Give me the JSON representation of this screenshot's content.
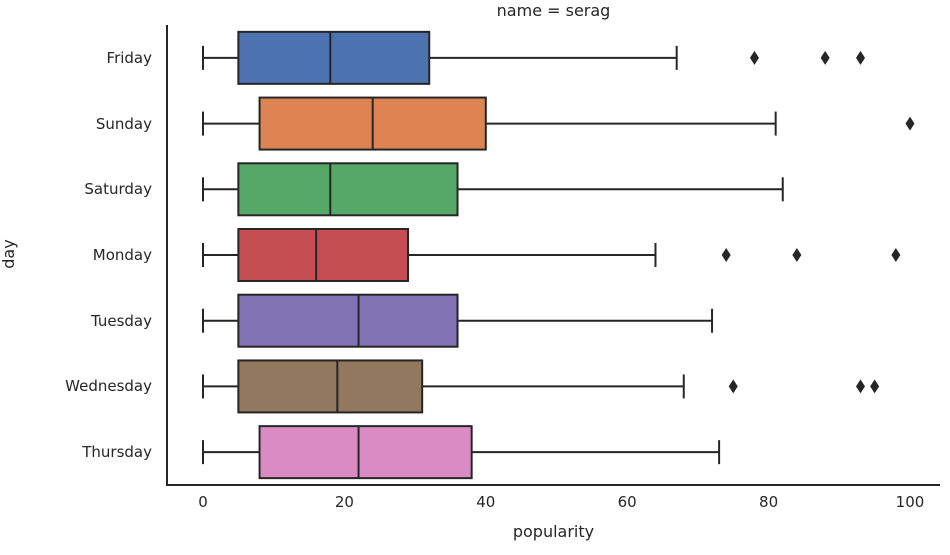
{
  "figure": {
    "title": "name = serag",
    "xlabel": "popularity",
    "ylabel": "day"
  },
  "chart_data": {
    "type": "boxplot",
    "orientation": "horizontal",
    "title": "name = serag",
    "xlabel": "popularity",
    "ylabel": "day",
    "grid": false,
    "legend": "none",
    "xlim": [
      -5,
      105
    ],
    "xticks": [
      "0",
      "20",
      "40",
      "60",
      "80",
      "100"
    ],
    "xtick_values": [
      0,
      20,
      40,
      60,
      80,
      100
    ],
    "categories": [
      "Friday",
      "Sunday",
      "Saturday",
      "Monday",
      "Tuesday",
      "Wednesday",
      "Thursday"
    ],
    "series": [
      {
        "name": "Friday",
        "whisker_low": 0,
        "q1": 5,
        "median": 18,
        "q3": 32,
        "whisker_high": 67,
        "outliers": [
          78,
          88,
          93
        ],
        "color": "#4C72B0"
      },
      {
        "name": "Sunday",
        "whisker_low": 0,
        "q1": 8,
        "median": 24,
        "q3": 40,
        "whisker_high": 81,
        "outliers": [
          100
        ],
        "color": "#DD8452"
      },
      {
        "name": "Saturday",
        "whisker_low": 0,
        "q1": 5,
        "median": 18,
        "q3": 36,
        "whisker_high": 82,
        "outliers": [],
        "color": "#55A868"
      },
      {
        "name": "Monday",
        "whisker_low": 0,
        "q1": 5,
        "median": 16,
        "q3": 29,
        "whisker_high": 64,
        "outliers": [
          74,
          84,
          98
        ],
        "color": "#C44E52"
      },
      {
        "name": "Tuesday",
        "whisker_low": 0,
        "q1": 5,
        "median": 22,
        "q3": 36,
        "whisker_high": 72,
        "outliers": [],
        "color": "#8172B3"
      },
      {
        "name": "Wednesday",
        "whisker_low": 0,
        "q1": 5,
        "median": 19,
        "q3": 31,
        "whisker_high": 68,
        "outliers": [
          75,
          93,
          95
        ],
        "color": "#937860"
      },
      {
        "name": "Thursday",
        "whisker_low": 0,
        "q1": 8,
        "median": 22,
        "q3": 38,
        "whisker_high": 73,
        "outliers": [],
        "color": "#DA8BC3"
      }
    ],
    "style": {
      "line_color": "#262626",
      "text_color": "#262626",
      "background": "#ffffff"
    }
  }
}
